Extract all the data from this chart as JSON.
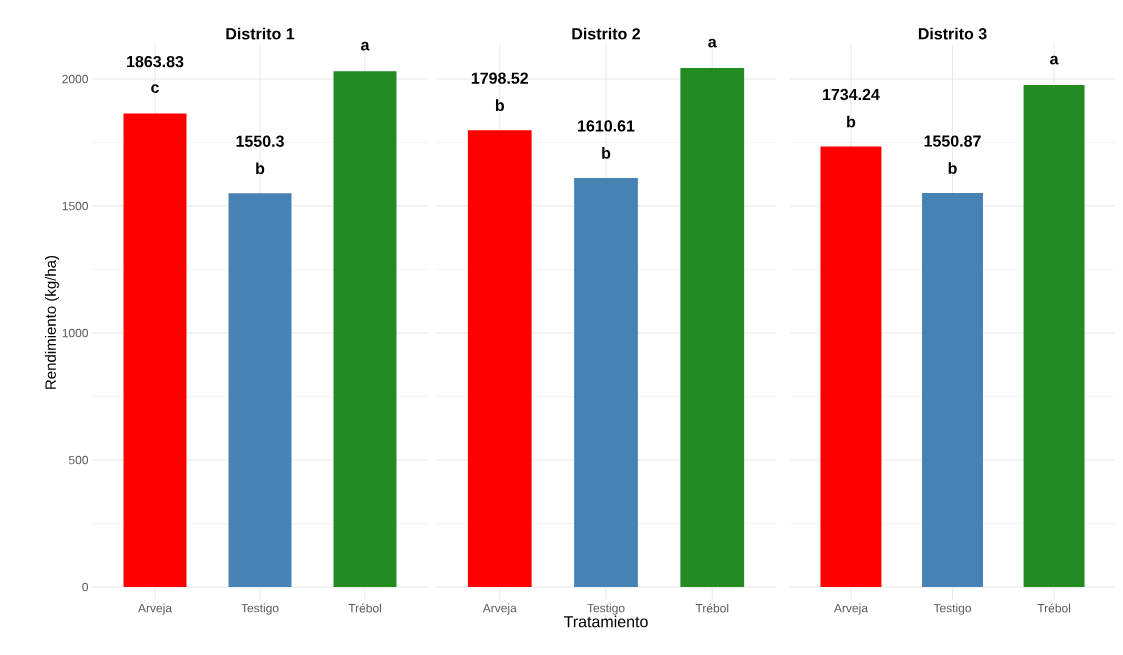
{
  "chart_data": [
    {
      "type": "bar",
      "title": "Distrito 1",
      "ylabel": "Rendimiento (kg/ha)",
      "categories": [
        "Arveja",
        "Testigo",
        "Trébol"
      ],
      "values": [
        1863.83,
        1550.3,
        2031
      ],
      "colors": [
        "#ff0000",
        "#4682b4",
        "#228b22"
      ],
      "value_labels": [
        "1863.83",
        "1550.3",
        null
      ],
      "annotations": [
        {
          "text": "c",
          "x": "Arveja",
          "y": 1863.83
        },
        {
          "text": "b",
          "x": "Testigo",
          "y": 1550.3
        },
        {
          "text": "a",
          "x": "Trébol",
          "y": 2031
        }
      ],
      "ylim": [
        -51,
        2134
      ],
      "yticks": [
        0,
        500,
        1000,
        1500,
        2000
      ],
      "grid": true
    },
    {
      "type": "bar",
      "title": "Distrito 2",
      "xlabel": "Tratamiento",
      "categories": [
        "Arveja",
        "Testigo",
        "Trébol"
      ],
      "values": [
        1798.52,
        1610.61,
        2043
      ],
      "colors": [
        "#ff0000",
        "#4682b4",
        "#228b22"
      ],
      "value_labels": [
        "1798.52",
        "1610.61",
        null
      ],
      "annotations": [
        {
          "text": "b",
          "x": "Arveja",
          "y": 1798.52
        },
        {
          "text": "b",
          "x": "Testigo",
          "y": 1610.61
        },
        {
          "text": "a",
          "x": "Trébol",
          "y": 2043
        }
      ],
      "ylim": [
        -51,
        2134
      ],
      "yticks": [
        0,
        500,
        1000,
        1500,
        2000
      ],
      "grid": true,
      "tick_labels": "x"
    },
    {
      "type": "bar",
      "title": "Distrito 3",
      "categories": [
        "Arveja",
        "Testigo",
        "Trébol"
      ],
      "values": [
        1734.24,
        1550.87,
        1976
      ],
      "colors": [
        "#ff0000",
        "#4682b4",
        "#228b22"
      ],
      "value_labels": [
        "1734.24",
        "1550.87",
        null
      ],
      "annotations": [
        {
          "text": "b",
          "x": "Arveja",
          "y": 1734.24
        },
        {
          "text": "b",
          "x": "Testigo",
          "y": 1550.87
        },
        {
          "text": "a",
          "x": "Trébol",
          "y": 1976
        }
      ],
      "ylim": [
        -51,
        2134
      ],
      "yticks": [
        0,
        500,
        1000,
        1500,
        2000
      ],
      "grid": true,
      "tick_labels": "x"
    }
  ]
}
